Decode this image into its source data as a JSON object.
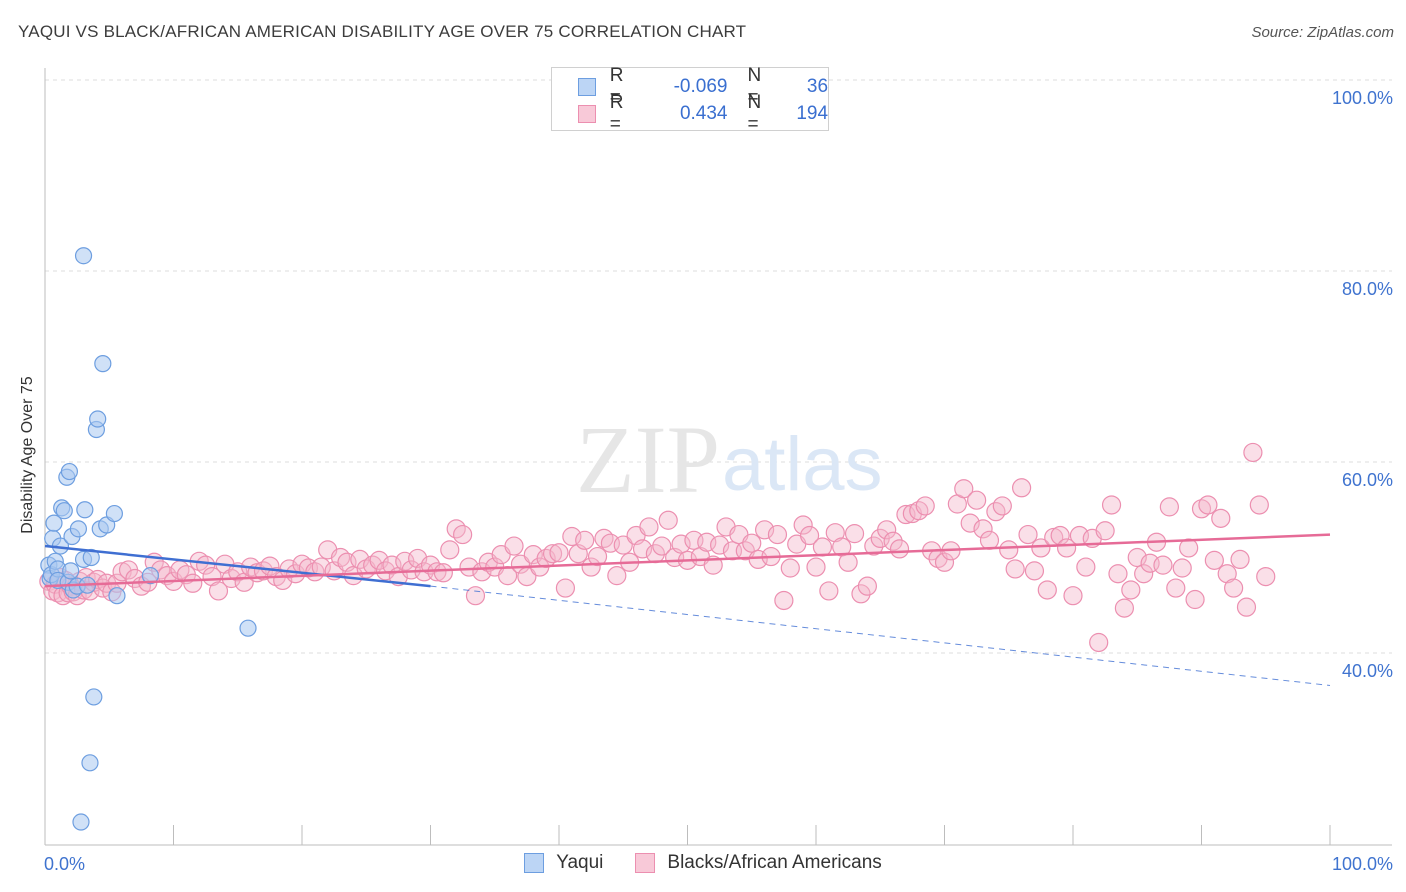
{
  "header": {
    "title": "YAQUI VS BLACK/AFRICAN AMERICAN DISABILITY AGE OVER 75 CORRELATION CHART",
    "source": "Source: ZipAtlas.com"
  },
  "watermark": {
    "zip": "ZIP",
    "atlas": "atlas"
  },
  "stats": {
    "yaqui": {
      "r_label": "R =",
      "r": "-0.069",
      "n_label": "N =",
      "n": "36"
    },
    "black": {
      "r_label": "R =",
      "r": "0.434",
      "n_label": "N =",
      "n": "194"
    }
  },
  "colors": {
    "yaqui_fill": "#a9c8f0",
    "yaqui_stroke": "#6d9ee0",
    "yaqui_line": "#3f6fd2",
    "black_fill": "#f4b8cc",
    "black_stroke": "#ec8fb0",
    "black_line": "#e66b97",
    "axis_text": "#3f73cf",
    "grid": "#dedede"
  },
  "chart_data": {
    "type": "scatter",
    "title": "YAQUI VS BLACK/AFRICAN AMERICAN DISABILITY AGE OVER 75 CORRELATION CHART",
    "xlabel": "",
    "ylabel": "Disability Age Over 75",
    "xlim": [
      0,
      100
    ],
    "ylim": [
      20,
      104
    ],
    "x_tick_labels": [
      "0.0%",
      "100.0%"
    ],
    "y_ticks": [
      40,
      60,
      80,
      100
    ],
    "y_tick_labels": [
      "40.0%",
      "60.0%",
      "80.0%",
      "100.0%"
    ],
    "grid": true,
    "legend_position": "bottom",
    "series": [
      {
        "name": "Yaqui",
        "points": [
          [
            0.3,
            49.2
          ],
          [
            0.4,
            47.8
          ],
          [
            0.5,
            48.2
          ],
          [
            0.6,
            52.0
          ],
          [
            0.7,
            53.6
          ],
          [
            0.8,
            49.6
          ],
          [
            1.0,
            48.8
          ],
          [
            1.0,
            47.6
          ],
          [
            1.2,
            51.2
          ],
          [
            1.3,
            55.2
          ],
          [
            1.5,
            54.9
          ],
          [
            1.7,
            58.4
          ],
          [
            1.8,
            47.4
          ],
          [
            1.9,
            59.0
          ],
          [
            2.0,
            48.6
          ],
          [
            2.1,
            52.2
          ],
          [
            2.2,
            46.6
          ],
          [
            2.5,
            47.0
          ],
          [
            2.6,
            53.0
          ],
          [
            2.8,
            22.3
          ],
          [
            3.0,
            49.8
          ],
          [
            3.0,
            81.6
          ],
          [
            3.1,
            55.0
          ],
          [
            3.3,
            47.1
          ],
          [
            3.5,
            28.5
          ],
          [
            3.6,
            50.0
          ],
          [
            3.8,
            35.4
          ],
          [
            4.0,
            63.4
          ],
          [
            4.1,
            64.5
          ],
          [
            4.3,
            53.0
          ],
          [
            4.5,
            70.3
          ],
          [
            4.8,
            53.4
          ],
          [
            5.4,
            54.6
          ],
          [
            5.6,
            46.0
          ],
          [
            8.2,
            48.1
          ],
          [
            15.8,
            42.6
          ]
        ],
        "trend": {
          "x": [
            0,
            30
          ],
          "y": [
            51.2,
            47.0
          ]
        },
        "trend_extension": {
          "x": [
            30,
            100
          ],
          "y": [
            47.0,
            36.6
          ]
        }
      },
      {
        "name": "Blacks/African Americans",
        "points": [
          [
            0.3,
            47.5
          ],
          [
            0.6,
            46.5
          ],
          [
            0.8,
            47.2
          ],
          [
            1.0,
            46.3
          ],
          [
            1.2,
            47.9
          ],
          [
            1.4,
            46.0
          ],
          [
            1.6,
            47.6
          ],
          [
            1.8,
            46.3
          ],
          [
            2.0,
            47.0
          ],
          [
            2.2,
            46.4
          ],
          [
            2.5,
            46.0
          ],
          [
            2.7,
            47.5
          ],
          [
            3.0,
            46.6
          ],
          [
            3.2,
            47.9
          ],
          [
            3.5,
            46.5
          ],
          [
            3.8,
            47.4
          ],
          [
            4.1,
            47.7
          ],
          [
            4.5,
            46.8
          ],
          [
            4.8,
            47.3
          ],
          [
            5.2,
            46.4
          ],
          [
            5.6,
            47.3
          ],
          [
            6.0,
            48.5
          ],
          [
            6.5,
            48.7
          ],
          [
            7.0,
            47.8
          ],
          [
            7.5,
            47.0
          ],
          [
            8.0,
            47.4
          ],
          [
            8.5,
            49.5
          ],
          [
            9.0,
            48.7
          ],
          [
            9.5,
            48.1
          ],
          [
            10.0,
            47.5
          ],
          [
            10.5,
            48.7
          ],
          [
            11.0,
            48.2
          ],
          [
            11.5,
            47.3
          ],
          [
            12.0,
            49.6
          ],
          [
            12.5,
            49.2
          ],
          [
            13.0,
            48.0
          ],
          [
            13.5,
            46.5
          ],
          [
            14.0,
            49.3
          ],
          [
            14.5,
            47.8
          ],
          [
            15.0,
            48.5
          ],
          [
            15.5,
            47.4
          ],
          [
            16.0,
            49.0
          ],
          [
            16.5,
            48.4
          ],
          [
            17.0,
            48.6
          ],
          [
            17.5,
            49.1
          ],
          [
            18.0,
            48.0
          ],
          [
            18.5,
            47.6
          ],
          [
            19.0,
            48.8
          ],
          [
            19.5,
            48.3
          ],
          [
            20.0,
            49.3
          ],
          [
            20.5,
            48.9
          ],
          [
            21.0,
            48.5
          ],
          [
            21.5,
            49.0
          ],
          [
            22.0,
            50.8
          ],
          [
            22.5,
            48.6
          ],
          [
            23.0,
            50.0
          ],
          [
            23.5,
            49.5
          ],
          [
            24.0,
            48.1
          ],
          [
            24.5,
            49.8
          ],
          [
            25.0,
            48.8
          ],
          [
            25.5,
            49.2
          ],
          [
            26.0,
            49.7
          ],
          [
            26.5,
            48.6
          ],
          [
            27.0,
            49.2
          ],
          [
            27.5,
            48.0
          ],
          [
            28.0,
            49.6
          ],
          [
            28.5,
            48.7
          ],
          [
            29.0,
            49.9
          ],
          [
            29.5,
            48.5
          ],
          [
            30.0,
            49.2
          ],
          [
            30.5,
            48.5
          ],
          [
            31.0,
            48.4
          ],
          [
            31.5,
            50.8
          ],
          [
            32.0,
            53.0
          ],
          [
            32.5,
            52.4
          ],
          [
            33.0,
            49.0
          ],
          [
            33.5,
            46.0
          ],
          [
            34.0,
            48.5
          ],
          [
            34.5,
            49.5
          ],
          [
            35.0,
            49.0
          ],
          [
            35.5,
            50.3
          ],
          [
            36.0,
            48.1
          ],
          [
            36.5,
            51.2
          ],
          [
            37.0,
            49.3
          ],
          [
            37.5,
            48.0
          ],
          [
            38.0,
            50.3
          ],
          [
            38.5,
            49.0
          ],
          [
            39.0,
            49.9
          ],
          [
            39.5,
            50.4
          ],
          [
            40.0,
            50.5
          ],
          [
            40.5,
            46.8
          ],
          [
            41.0,
            52.2
          ],
          [
            41.5,
            50.4
          ],
          [
            42.0,
            51.8
          ],
          [
            42.5,
            49.0
          ],
          [
            43.0,
            50.1
          ],
          [
            43.5,
            52.0
          ],
          [
            44.0,
            51.5
          ],
          [
            44.5,
            48.1
          ],
          [
            45.0,
            51.3
          ],
          [
            45.5,
            49.5
          ],
          [
            46.0,
            52.3
          ],
          [
            46.5,
            50.9
          ],
          [
            47.0,
            53.2
          ],
          [
            47.5,
            50.4
          ],
          [
            48.0,
            51.2
          ],
          [
            48.5,
            53.9
          ],
          [
            49.0,
            50.0
          ],
          [
            49.5,
            51.4
          ],
          [
            50.0,
            49.7
          ],
          [
            50.5,
            51.8
          ],
          [
            51.0,
            50.1
          ],
          [
            51.5,
            51.6
          ],
          [
            52.0,
            49.2
          ],
          [
            52.5,
            51.3
          ],
          [
            53.0,
            53.2
          ],
          [
            53.5,
            50.7
          ],
          [
            54.0,
            52.4
          ],
          [
            54.5,
            50.7
          ],
          [
            55.0,
            51.5
          ],
          [
            55.5,
            49.8
          ],
          [
            56.0,
            52.9
          ],
          [
            56.5,
            50.1
          ],
          [
            57.0,
            52.4
          ],
          [
            57.5,
            45.5
          ],
          [
            58.0,
            48.9
          ],
          [
            58.5,
            51.4
          ],
          [
            59.0,
            53.4
          ],
          [
            59.5,
            52.3
          ],
          [
            60.0,
            49.0
          ],
          [
            60.5,
            51.1
          ],
          [
            61.0,
            46.5
          ],
          [
            61.5,
            52.6
          ],
          [
            62.0,
            51.1
          ],
          [
            62.5,
            49.5
          ],
          [
            63.0,
            52.5
          ],
          [
            63.5,
            46.2
          ],
          [
            64.0,
            47.0
          ],
          [
            64.5,
            51.2
          ],
          [
            65.0,
            52.0
          ],
          [
            65.5,
            52.9
          ],
          [
            66.0,
            51.7
          ],
          [
            66.5,
            50.9
          ],
          [
            67.0,
            54.5
          ],
          [
            67.5,
            54.6
          ],
          [
            68.0,
            54.9
          ],
          [
            68.5,
            55.4
          ],
          [
            69.0,
            50.7
          ],
          [
            69.5,
            49.9
          ],
          [
            70.0,
            49.5
          ],
          [
            70.5,
            50.7
          ],
          [
            71.0,
            55.6
          ],
          [
            71.5,
            57.2
          ],
          [
            72.0,
            53.6
          ],
          [
            72.5,
            56.0
          ],
          [
            73.0,
            53.0
          ],
          [
            73.5,
            51.8
          ],
          [
            74.0,
            54.8
          ],
          [
            74.5,
            55.4
          ],
          [
            75.0,
            50.8
          ],
          [
            75.5,
            48.8
          ],
          [
            76.0,
            57.3
          ],
          [
            76.5,
            52.4
          ],
          [
            77.0,
            48.6
          ],
          [
            77.5,
            51.0
          ],
          [
            78.0,
            46.6
          ],
          [
            78.5,
            52.1
          ],
          [
            79.0,
            52.3
          ],
          [
            79.5,
            51.0
          ],
          [
            80.0,
            46.0
          ],
          [
            80.5,
            52.3
          ],
          [
            81.0,
            49.0
          ],
          [
            81.5,
            52.0
          ],
          [
            82.0,
            41.1
          ],
          [
            82.5,
            52.8
          ],
          [
            83.0,
            55.5
          ],
          [
            83.5,
            48.3
          ],
          [
            84.0,
            44.7
          ],
          [
            84.5,
            46.6
          ],
          [
            85.0,
            50.0
          ],
          [
            85.5,
            48.3
          ],
          [
            86.0,
            49.4
          ],
          [
            86.5,
            51.6
          ],
          [
            87.0,
            49.2
          ],
          [
            87.5,
            55.3
          ],
          [
            88.0,
            46.8
          ],
          [
            88.5,
            48.9
          ],
          [
            89.0,
            51.0
          ],
          [
            89.5,
            45.6
          ],
          [
            90.0,
            55.1
          ],
          [
            90.5,
            55.5
          ],
          [
            91.0,
            49.7
          ],
          [
            91.5,
            54.1
          ],
          [
            92.0,
            48.3
          ],
          [
            92.5,
            46.8
          ],
          [
            93.0,
            49.8
          ],
          [
            93.5,
            44.8
          ],
          [
            94.0,
            61.0
          ],
          [
            94.5,
            55.5
          ],
          [
            95.0,
            48.0
          ]
        ],
        "trend": {
          "x": [
            0,
            100
          ],
          "y": [
            47.0,
            52.4
          ]
        }
      }
    ]
  },
  "legend": {
    "yaqui": "Yaqui",
    "black": "Blacks/African Americans"
  }
}
